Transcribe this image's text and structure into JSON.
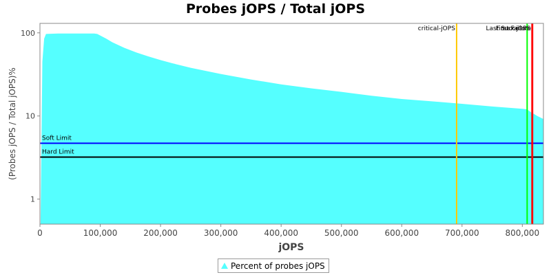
{
  "chart_data": {
    "type": "area",
    "title": "Probes jOPS / Total jOPS",
    "xlabel": "jOPS",
    "ylabel": "(Probes jOPS / Total jOPS)%",
    "xlim": [
      0,
      835000
    ],
    "ylim": [
      0.5,
      130
    ],
    "yscale": "log",
    "x_ticks": [
      {
        "value": 0,
        "label": "0"
      },
      {
        "value": 100000,
        "label": "100,000"
      },
      {
        "value": 200000,
        "label": "200,000"
      },
      {
        "value": 300000,
        "label": "300,000"
      },
      {
        "value": 400000,
        "label": "400,000"
      },
      {
        "value": 500000,
        "label": "500,000"
      },
      {
        "value": 600000,
        "label": "600,000"
      },
      {
        "value": 700000,
        "label": "700,000"
      },
      {
        "value": 800000,
        "label": "800,000"
      }
    ],
    "y_ticks": [
      {
        "value": 1,
        "label": "1"
      },
      {
        "value": 10,
        "label": "10"
      },
      {
        "value": 100,
        "label": "100"
      }
    ],
    "series": [
      {
        "name": "Percent of probes jOPS",
        "color": "#55ffff",
        "points": [
          [
            1000,
            0.5
          ],
          [
            4000,
            45
          ],
          [
            7000,
            85
          ],
          [
            10000,
            97
          ],
          [
            30000,
            98
          ],
          [
            60000,
            98
          ],
          [
            90000,
            98
          ],
          [
            95000,
            97
          ],
          [
            100000,
            93
          ],
          [
            110000,
            85
          ],
          [
            120000,
            77
          ],
          [
            140000,
            66
          ],
          [
            160000,
            58
          ],
          [
            180000,
            52
          ],
          [
            200000,
            47
          ],
          [
            220000,
            43
          ],
          [
            250000,
            38
          ],
          [
            300000,
            32
          ],
          [
            350000,
            27.5
          ],
          [
            400000,
            24
          ],
          [
            450000,
            21.5
          ],
          [
            500000,
            19.5
          ],
          [
            550000,
            17.5
          ],
          [
            600000,
            16
          ],
          [
            650000,
            15
          ],
          [
            700000,
            14
          ],
          [
            750000,
            13
          ],
          [
            800000,
            12.2
          ],
          [
            808000,
            12
          ],
          [
            815000,
            11
          ],
          [
            820000,
            10.5
          ],
          [
            825000,
            10
          ],
          [
            835000,
            9.2
          ]
        ]
      }
    ],
    "vertical_markers": [
      {
        "label": "critical-jOPS",
        "x": 691000,
        "color": "#ffc800"
      },
      {
        "label": "Last Success",
        "x": 808000,
        "color": "#00ff00"
      },
      {
        "label": "max-jOPS",
        "x": 816000,
        "color": "#ff0000"
      },
      {
        "label": "First Failure",
        "x": 817000,
        "color": "#ff0000"
      }
    ],
    "horizontal_markers": [
      {
        "label": "Soft Limit",
        "y": 4.7,
        "color": "#0000ff"
      },
      {
        "label": "Hard Limit",
        "y": 3.2,
        "color": "#000000"
      }
    ],
    "legend": {
      "position": "bottom",
      "entries": [
        "Percent of probes jOPS"
      ]
    },
    "grid": false
  }
}
